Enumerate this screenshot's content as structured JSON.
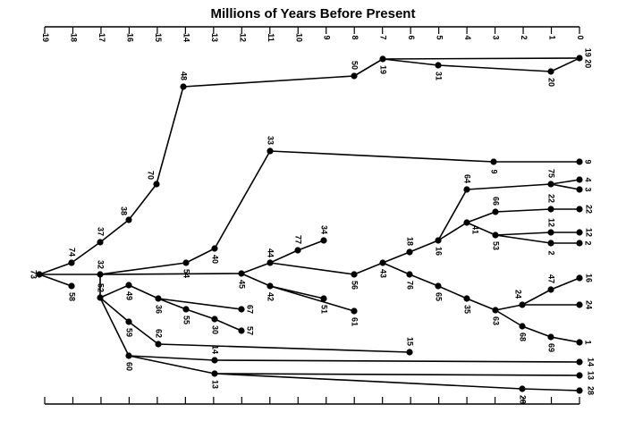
{
  "title": "Millions of Years Before Present",
  "axis": {
    "ticks": [
      "19",
      "18",
      "17",
      "16",
      "15",
      "14",
      "13",
      "12",
      "11",
      "10",
      "9",
      "8",
      "7",
      "6",
      "5",
      "4",
      "3",
      "2",
      "1",
      "0"
    ]
  },
  "tree": {
    "nodes": [
      {
        "id": "73",
        "label": "73"
      },
      {
        "id": "74",
        "label": "74"
      },
      {
        "id": "58",
        "label": "58"
      },
      {
        "id": "37",
        "label": "37"
      },
      {
        "id": "38",
        "label": "38"
      },
      {
        "id": "70",
        "label": "70"
      },
      {
        "id": "48",
        "label": "48"
      },
      {
        "id": "50",
        "label": "50"
      },
      {
        "id": "19",
        "label": "19"
      },
      {
        "id": "31",
        "label": "31"
      },
      {
        "id": "20",
        "label": "20"
      },
      {
        "id": "1920",
        "label": "19 20"
      },
      {
        "id": "32",
        "label": "32"
      },
      {
        "id": "54",
        "label": "54"
      },
      {
        "id": "40",
        "label": "40"
      },
      {
        "id": "33",
        "label": "33"
      },
      {
        "id": "9",
        "label": "9"
      },
      {
        "id": "9t",
        "label": "9"
      },
      {
        "id": "45",
        "label": "45"
      },
      {
        "id": "44",
        "label": "44"
      },
      {
        "id": "77",
        "label": "77"
      },
      {
        "id": "34",
        "label": "34"
      },
      {
        "id": "42",
        "label": "42"
      },
      {
        "id": "51",
        "label": "51"
      },
      {
        "id": "61",
        "label": "61"
      },
      {
        "id": "56",
        "label": "56"
      },
      {
        "id": "43",
        "label": "43"
      },
      {
        "id": "18",
        "label": "18"
      },
      {
        "id": "16",
        "label": "16"
      },
      {
        "id": "64",
        "label": "64"
      },
      {
        "id": "75",
        "label": "75"
      },
      {
        "id": "t4",
        "label": "4"
      },
      {
        "id": "t3",
        "label": "3"
      },
      {
        "id": "41",
        "label": "41"
      },
      {
        "id": "66",
        "label": "66"
      },
      {
        "id": "22",
        "label": "22"
      },
      {
        "id": "t22",
        "label": "22"
      },
      {
        "id": "53",
        "label": "53"
      },
      {
        "id": "12",
        "label": "12"
      },
      {
        "id": "t12",
        "label": "12"
      },
      {
        "id": "2",
        "label": "2"
      },
      {
        "id": "t2",
        "label": "2"
      },
      {
        "id": "76",
        "label": "76"
      },
      {
        "id": "65",
        "label": "65"
      },
      {
        "id": "35",
        "label": "35"
      },
      {
        "id": "63",
        "label": "63"
      },
      {
        "id": "24",
        "label": "24"
      },
      {
        "id": "47",
        "label": "47"
      },
      {
        "id": "t16",
        "label": "16"
      },
      {
        "id": "t24",
        "label": "24"
      },
      {
        "id": "68",
        "label": "68"
      },
      {
        "id": "69",
        "label": "69"
      },
      {
        "id": "t1",
        "label": "1"
      },
      {
        "id": "52",
        "label": "52"
      },
      {
        "id": "49",
        "label": "49"
      },
      {
        "id": "36",
        "label": "36"
      },
      {
        "id": "55",
        "label": "55"
      },
      {
        "id": "67",
        "label": "67"
      },
      {
        "id": "30",
        "label": "30"
      },
      {
        "id": "57",
        "label": "57"
      },
      {
        "id": "59",
        "label": "59"
      },
      {
        "id": "62",
        "label": "62"
      },
      {
        "id": "15",
        "label": "15"
      },
      {
        "id": "60",
        "label": "60"
      },
      {
        "id": "14",
        "label": "14"
      },
      {
        "id": "t14",
        "label": "14"
      },
      {
        "id": "13",
        "label": "13"
      },
      {
        "id": "t13",
        "label": "13"
      },
      {
        "id": "28",
        "label": "28"
      },
      {
        "id": "t28",
        "label": "28"
      }
    ],
    "edges": [
      [
        "73",
        "74"
      ],
      [
        "73",
        "58"
      ],
      [
        "73",
        "32"
      ],
      [
        "74",
        "37"
      ],
      [
        "37",
        "38"
      ],
      [
        "38",
        "70"
      ],
      [
        "70",
        "48"
      ],
      [
        "48",
        "50"
      ],
      [
        "50",
        "19"
      ],
      [
        "19",
        "31"
      ],
      [
        "31",
        "20"
      ],
      [
        "19",
        "1920"
      ],
      [
        "20",
        "1920"
      ],
      [
        "32",
        "54"
      ],
      [
        "54",
        "40"
      ],
      [
        "40",
        "33"
      ],
      [
        "33",
        "9"
      ],
      [
        "9",
        "9t"
      ],
      [
        "32",
        "45"
      ],
      [
        "45",
        "44"
      ],
      [
        "44",
        "77"
      ],
      [
        "77",
        "34"
      ],
      [
        "45",
        "42"
      ],
      [
        "42",
        "51"
      ],
      [
        "42",
        "61"
      ],
      [
        "44",
        "56"
      ],
      [
        "56",
        "43"
      ],
      [
        "43",
        "18"
      ],
      [
        "18",
        "16"
      ],
      [
        "16",
        "64"
      ],
      [
        "64",
        "75"
      ],
      [
        "75",
        "t4"
      ],
      [
        "75",
        "t3"
      ],
      [
        "16",
        "41"
      ],
      [
        "41",
        "66"
      ],
      [
        "66",
        "22"
      ],
      [
        "22",
        "t22"
      ],
      [
        "41",
        "53"
      ],
      [
        "53",
        "12"
      ],
      [
        "12",
        "t12"
      ],
      [
        "53",
        "2"
      ],
      [
        "2",
        "t2"
      ],
      [
        "43",
        "76"
      ],
      [
        "76",
        "65"
      ],
      [
        "65",
        "35"
      ],
      [
        "35",
        "63"
      ],
      [
        "63",
        "24"
      ],
      [
        "24",
        "47"
      ],
      [
        "47",
        "t16"
      ],
      [
        "24",
        "t24"
      ],
      [
        "63",
        "68"
      ],
      [
        "68",
        "69"
      ],
      [
        "69",
        "t1"
      ],
      [
        "32",
        "52"
      ],
      [
        "52",
        "49"
      ],
      [
        "49",
        "36"
      ],
      [
        "36",
        "55"
      ],
      [
        "55",
        "30"
      ],
      [
        "30",
        "57"
      ],
      [
        "36",
        "67"
      ],
      [
        "52",
        "59"
      ],
      [
        "59",
        "62"
      ],
      [
        "62",
        "15"
      ],
      [
        "52",
        "60"
      ],
      [
        "60",
        "14"
      ],
      [
        "14",
        "t14"
      ],
      [
        "60",
        "13"
      ],
      [
        "13",
        "t13"
      ],
      [
        "13",
        "28"
      ],
      [
        "28",
        "t28"
      ]
    ]
  }
}
